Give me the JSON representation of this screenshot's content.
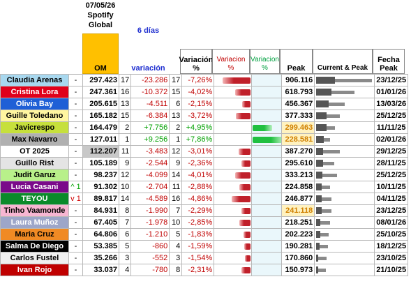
{
  "header": {
    "date": "07/05/26",
    "source_line1": "Spotify",
    "source_line2": "Global",
    "period": "6 días",
    "columns": {
      "om": "OM",
      "variation": "variación",
      "variation_pct": "Variación %",
      "neg_bar": "Variacion %",
      "pos_bar": "Variacion %",
      "peak": "Peak",
      "current_peak": "Current & Peak",
      "peak_date": "Fecha Peak"
    }
  },
  "rows": [
    [
      "Claudia Arenas",
      "-",
      "297.423",
      "17",
      "-23.286",
      "17",
      "-7,26%",
      "906.116",
      "23/12/25"
    ],
    [
      "Cristina Lora",
      "-",
      "247.361",
      "16",
      "-10.372",
      "15",
      "-4,02%",
      "618.793",
      "01/01/26"
    ],
    [
      "Olivia Bay",
      "-",
      "205.615",
      "13",
      "-4.511",
      "6",
      "-2,15%",
      "456.367",
      "13/03/26"
    ],
    [
      "Guille Toledano",
      "-",
      "165.182",
      "15",
      "-6.384",
      "13",
      "-3,72%",
      "377.333",
      "25/12/25"
    ],
    [
      "Javicrespo",
      "-",
      "164.479",
      "2",
      "+7.756",
      "2",
      "+4,95%",
      "299.463",
      "11/11/25"
    ],
    [
      "Max Navarro",
      "-",
      "127.011",
      "1",
      "+9.256",
      "1",
      "+7,86%",
      "228.581",
      "02/01/26"
    ],
    [
      "OT 2025",
      "-",
      "112.207",
      "11",
      "-3.483",
      "12",
      "-3,01%",
      "387.270",
      "29/12/25"
    ],
    [
      "Guillo Rist",
      "-",
      "105.189",
      "9",
      "-2.544",
      "9",
      "-2,36%",
      "295.610",
      "28/11/25"
    ],
    [
      "Judit Garuz",
      "-",
      "98.237",
      "12",
      "-4.099",
      "14",
      "-4,01%",
      "333.213",
      "25/12/25"
    ],
    [
      "Lucia Casani",
      "^ 1",
      "91.302",
      "10",
      "-2.704",
      "11",
      "-2,88%",
      "224.858",
      "10/11/25"
    ],
    [
      "TEYOU",
      "v 1",
      "89.817",
      "14",
      "-4.589",
      "16",
      "-4,86%",
      "246.877",
      "04/11/25"
    ],
    [
      "Tinho Vaamonde",
      "-",
      "84.931",
      "8",
      "-1.990",
      "7",
      "-2,29%",
      "241.118",
      "23/12/25"
    ],
    [
      "Laura Muñoz",
      "-",
      "67.405",
      "7",
      "-1.978",
      "10",
      "-2,85%",
      "218.251",
      "08/01/26"
    ],
    [
      "Maria Cruz",
      "-",
      "64.806",
      "6",
      "-1.210",
      "5",
      "-1,83%",
      "202.223",
      "25/10/25"
    ],
    [
      "Salma De Diego",
      "-",
      "53.385",
      "5",
      "-860",
      "4",
      "-1,59%",
      "190.281",
      "18/12/25"
    ],
    [
      "Carlos Fustel",
      "-",
      "35.266",
      "3",
      "-552",
      "3",
      "-1,54%",
      "170.860",
      "23/10/25"
    ],
    [
      "Ivan Rojo",
      "-",
      "33.037",
      "4",
      "-780",
      "8",
      "-2,31%",
      "150.973",
      "21/10/25"
    ]
  ]
}
